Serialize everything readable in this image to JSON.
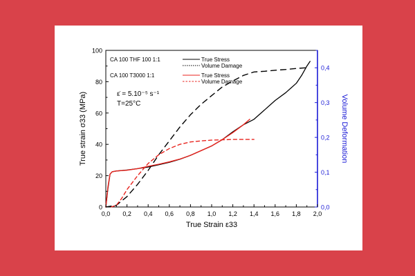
{
  "chart_data": {
    "type": "line",
    "title": "",
    "xlabel": "True Strain ε33",
    "ylabel": "True strain σ33 (MPa)",
    "y2label": "Volume Deformation",
    "xlim": [
      0.0,
      2.0
    ],
    "ylim": [
      0,
      100
    ],
    "y2lim": [
      0.0,
      0.45
    ],
    "x_ticks": [
      "0,0",
      "0,2",
      "0,4",
      "0,6",
      "0,8",
      "1,0",
      "1,2",
      "1,4",
      "1,6",
      "1,8",
      "2,0"
    ],
    "y_ticks": [
      "0",
      "20",
      "40",
      "60",
      "80",
      "100"
    ],
    "y2_ticks": [
      "0,0",
      "0,1",
      "0,2",
      "0,3",
      "0,4"
    ],
    "grid": false,
    "legend_placement": "top-left",
    "legend": [
      {
        "group": "CA 100 THF 100 1:1",
        "entries": [
          "True Stress",
          "Volume Damage"
        ],
        "color": "#000000"
      },
      {
        "group": "CA 100 T3000 1:1",
        "entries": [
          "True Stress",
          "Volume Damage"
        ],
        "color": "#e8221c"
      }
    ],
    "annotations": [
      "ε̇ = 5.10⁻⁵ s⁻¹",
      "T=25°C"
    ],
    "series": [
      {
        "name": "True Stress",
        "group": "CA 100 THF 100 1:1",
        "axis": "left",
        "color": "#000000",
        "style": "solid",
        "x": [
          0.0,
          0.02,
          0.04,
          0.06,
          0.1,
          0.2,
          0.3,
          0.4,
          0.5,
          0.6,
          0.7,
          0.8,
          0.9,
          1.0,
          1.1,
          1.2,
          1.3,
          1.4,
          1.5,
          1.6,
          1.7,
          1.8,
          1.85,
          1.9,
          1.93
        ],
        "y": [
          0,
          12,
          21,
          22.5,
          23,
          23.6,
          24.5,
          25.5,
          27,
          28.5,
          30.5,
          33,
          36,
          39,
          43,
          48,
          52.5,
          56,
          62,
          68,
          73,
          79,
          84,
          90,
          93
        ]
      },
      {
        "name": "Volume Damage",
        "group": "CA 100 THF 100 1:1",
        "axis": "right",
        "color": "#000000",
        "style": "dashed",
        "x": [
          0.0,
          0.1,
          0.2,
          0.3,
          0.4,
          0.5,
          0.6,
          0.7,
          0.8,
          0.9,
          1.0,
          1.1,
          1.2,
          1.3,
          1.4,
          1.5,
          1.6,
          1.7,
          1.8,
          1.9
        ],
        "y": [
          0.0,
          0.005,
          0.03,
          0.065,
          0.105,
          0.15,
          0.19,
          0.23,
          0.265,
          0.295,
          0.32,
          0.345,
          0.362,
          0.378,
          0.388,
          0.39,
          0.393,
          0.395,
          0.398,
          0.4
        ]
      },
      {
        "name": "True Stress",
        "group": "CA 100 T3000 1:1",
        "axis": "left",
        "color": "#e8221c",
        "style": "solid",
        "x": [
          0.0,
          0.02,
          0.04,
          0.06,
          0.1,
          0.2,
          0.3,
          0.4,
          0.5,
          0.6,
          0.7,
          0.8,
          0.9,
          1.0,
          1.1,
          1.2,
          1.3,
          1.36
        ],
        "y": [
          0,
          13,
          21,
          22.5,
          23,
          23.5,
          24.5,
          26,
          27.3,
          28.8,
          30.6,
          33,
          36,
          39,
          43,
          47.5,
          52.5,
          56
        ]
      },
      {
        "name": "Volume Damage",
        "group": "CA 100 T3000 1:1",
        "axis": "right",
        "color": "#e8221c",
        "style": "dashed",
        "x": [
          0.05,
          0.1,
          0.15,
          0.2,
          0.3,
          0.4,
          0.5,
          0.6,
          0.7,
          0.8,
          0.9,
          1.0,
          1.1,
          1.2,
          1.3,
          1.4
        ],
        "y": [
          0.0,
          0.005,
          0.025,
          0.05,
          0.09,
          0.125,
          0.15,
          0.168,
          0.18,
          0.187,
          0.19,
          0.192,
          0.193,
          0.194,
          0.194,
          0.194
        ]
      }
    ]
  }
}
